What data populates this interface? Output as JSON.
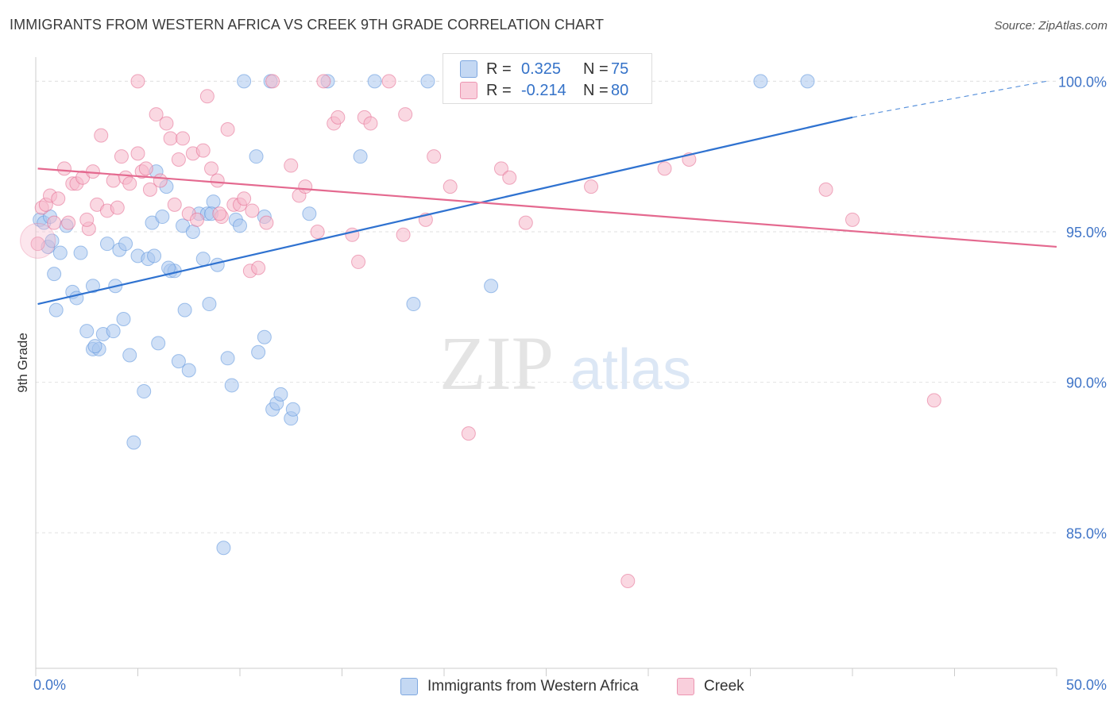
{
  "title": "IMMIGRANTS FROM WESTERN AFRICA VS CREEK 9TH GRADE CORRELATION CHART",
  "source": "Source: ZipAtlas.com",
  "watermark": {
    "zip": "ZIP",
    "atlas": "atlas"
  },
  "legend": {
    "rows": [
      {
        "r_label": "R =",
        "r_value": "0.325",
        "n_label": "N =",
        "n_value": "75",
        "color": "#aac7ee"
      },
      {
        "r_label": "R =",
        "r_value": "-0.214",
        "n_label": "N =",
        "n_value": "80",
        "color": "#f5b8cb"
      }
    ]
  },
  "bottom_legend": [
    {
      "label": "Immigrants from Western Africa",
      "color": "#aac7ee"
    },
    {
      "label": "Creek",
      "color": "#f5b8cb"
    }
  ],
  "chart_data": {
    "type": "scatter",
    "title": "IMMIGRANTS FROM WESTERN AFRICA VS CREEK 9TH GRADE CORRELATION CHART",
    "xlabel": "",
    "ylabel": "9th Grade",
    "xlim": [
      0,
      50
    ],
    "ylim": [
      80.5,
      100.8
    ],
    "x_tick_labels": [
      "0.0%",
      "50.0%"
    ],
    "y_ticks": [
      85,
      90,
      95,
      100
    ],
    "y_tick_labels": [
      "85.0%",
      "90.0%",
      "95.0%",
      "100.0%"
    ],
    "grid": true,
    "series": [
      {
        "name": "Immigrants from Western Africa",
        "color": "#5b93dc",
        "fill": "#aac7ee",
        "trend": {
          "x": [
            0.1,
            40.0
          ],
          "y": [
            92.6,
            98.8
          ],
          "dashed_to": [
            49.5,
            100.0
          ]
        },
        "points": [
          [
            0.2,
            95.4
          ],
          [
            0.4,
            95.3
          ],
          [
            0.6,
            94.5
          ],
          [
            0.8,
            94.7
          ],
          [
            0.9,
            93.6
          ],
          [
            1.0,
            92.4
          ],
          [
            1.2,
            94.3
          ],
          [
            1.5,
            95.2
          ],
          [
            1.8,
            93.0
          ],
          [
            2.0,
            92.8
          ],
          [
            2.2,
            94.3
          ],
          [
            2.5,
            91.7
          ],
          [
            2.8,
            93.2
          ],
          [
            2.8,
            91.1
          ],
          [
            3.1,
            91.1
          ],
          [
            3.3,
            91.6
          ],
          [
            3.5,
            94.6
          ],
          [
            3.8,
            91.7
          ],
          [
            3.9,
            93.2
          ],
          [
            4.1,
            94.4
          ],
          [
            4.3,
            92.1
          ],
          [
            4.4,
            94.6
          ],
          [
            4.6,
            90.9
          ],
          [
            4.8,
            88.0
          ],
          [
            5.0,
            94.2
          ],
          [
            5.3,
            89.7
          ],
          [
            5.5,
            94.1
          ],
          [
            5.7,
            95.3
          ],
          [
            5.8,
            94.2
          ],
          [
            5.9,
            97.0
          ],
          [
            6.0,
            91.3
          ],
          [
            6.2,
            95.5
          ],
          [
            6.4,
            96.5
          ],
          [
            6.6,
            93.7
          ],
          [
            6.8,
            93.7
          ],
          [
            7.0,
            90.7
          ],
          [
            7.2,
            95.2
          ],
          [
            7.3,
            92.4
          ],
          [
            7.5,
            90.4
          ],
          [
            7.7,
            95.0
          ],
          [
            8.0,
            95.6
          ],
          [
            8.2,
            94.1
          ],
          [
            8.4,
            95.6
          ],
          [
            8.5,
            92.6
          ],
          [
            8.7,
            96.0
          ],
          [
            8.9,
            93.9
          ],
          [
            9.2,
            84.5
          ],
          [
            9.4,
            90.8
          ],
          [
            9.6,
            89.9
          ],
          [
            9.8,
            95.4
          ],
          [
            10.0,
            95.2
          ],
          [
            10.2,
            100.0
          ],
          [
            10.8,
            97.5
          ],
          [
            10.9,
            91.0
          ],
          [
            11.2,
            91.5
          ],
          [
            11.2,
            95.5
          ],
          [
            11.5,
            100.0
          ],
          [
            11.6,
            89.1
          ],
          [
            11.8,
            89.3
          ],
          [
            12.0,
            89.6
          ],
          [
            12.5,
            88.8
          ],
          [
            12.6,
            89.1
          ],
          [
            13.4,
            95.6
          ],
          [
            14.3,
            100.0
          ],
          [
            15.9,
            97.5
          ],
          [
            16.6,
            100.0
          ],
          [
            18.5,
            92.6
          ],
          [
            19.2,
            100.0
          ],
          [
            22.3,
            93.2
          ],
          [
            35.5,
            100.0
          ],
          [
            37.8,
            100.0
          ],
          [
            0.7,
            95.5
          ],
          [
            2.9,
            91.2
          ],
          [
            6.5,
            93.8
          ],
          [
            8.6,
            95.6
          ]
        ]
      },
      {
        "name": "Creek",
        "color": "#e4698f",
        "fill": "#f5b8cb",
        "trend": {
          "x": [
            0.1,
            50.0
          ],
          "y": [
            97.1,
            94.5
          ]
        },
        "points": [
          [
            0.3,
            95.8
          ],
          [
            0.5,
            95.9
          ],
          [
            0.7,
            96.2
          ],
          [
            0.9,
            95.3
          ],
          [
            1.1,
            96.1
          ],
          [
            1.4,
            97.1
          ],
          [
            1.6,
            95.3
          ],
          [
            1.8,
            96.6
          ],
          [
            2.0,
            96.6
          ],
          [
            2.3,
            96.8
          ],
          [
            2.6,
            95.1
          ],
          [
            2.8,
            97.0
          ],
          [
            3.0,
            95.9
          ],
          [
            3.2,
            98.2
          ],
          [
            3.5,
            95.7
          ],
          [
            3.8,
            96.7
          ],
          [
            4.0,
            95.8
          ],
          [
            4.2,
            97.5
          ],
          [
            4.4,
            96.8
          ],
          [
            4.6,
            96.6
          ],
          [
            5.0,
            97.6
          ],
          [
            5.2,
            97.0
          ],
          [
            5.4,
            97.1
          ],
          [
            5.6,
            96.4
          ],
          [
            5.9,
            98.9
          ],
          [
            6.1,
            96.7
          ],
          [
            6.4,
            98.6
          ],
          [
            6.6,
            98.1
          ],
          [
            6.8,
            95.9
          ],
          [
            7.0,
            97.4
          ],
          [
            7.2,
            98.1
          ],
          [
            7.5,
            95.6
          ],
          [
            7.7,
            97.6
          ],
          [
            7.9,
            95.4
          ],
          [
            8.2,
            97.7
          ],
          [
            8.4,
            99.5
          ],
          [
            8.6,
            97.1
          ],
          [
            8.9,
            96.7
          ],
          [
            9.1,
            95.5
          ],
          [
            9.4,
            98.4
          ],
          [
            9.7,
            95.9
          ],
          [
            10.0,
            95.9
          ],
          [
            10.2,
            96.1
          ],
          [
            10.5,
            93.7
          ],
          [
            10.6,
            95.7
          ],
          [
            10.9,
            93.8
          ],
          [
            11.3,
            95.3
          ],
          [
            11.6,
            100.0
          ],
          [
            12.5,
            97.2
          ],
          [
            12.9,
            96.2
          ],
          [
            13.2,
            96.5
          ],
          [
            13.8,
            95.0
          ],
          [
            14.1,
            100.0
          ],
          [
            14.6,
            98.6
          ],
          [
            14.8,
            98.8
          ],
          [
            15.5,
            94.9
          ],
          [
            15.8,
            94.0
          ],
          [
            16.1,
            98.8
          ],
          [
            16.4,
            98.6
          ],
          [
            17.3,
            100.0
          ],
          [
            18.0,
            94.9
          ],
          [
            18.1,
            98.9
          ],
          [
            19.1,
            95.4
          ],
          [
            19.5,
            97.5
          ],
          [
            20.3,
            96.5
          ],
          [
            21.2,
            88.3
          ],
          [
            22.8,
            97.1
          ],
          [
            23.2,
            96.8
          ],
          [
            24.0,
            95.3
          ],
          [
            27.2,
            96.5
          ],
          [
            29.0,
            83.4
          ],
          [
            30.8,
            97.1
          ],
          [
            32.0,
            97.4
          ],
          [
            38.7,
            96.4
          ],
          [
            40.0,
            95.4
          ],
          [
            44.0,
            89.4
          ],
          [
            5.0,
            100.0
          ],
          [
            0.1,
            94.6
          ],
          [
            2.5,
            95.4
          ],
          [
            9.0,
            95.6
          ]
        ]
      }
    ]
  }
}
